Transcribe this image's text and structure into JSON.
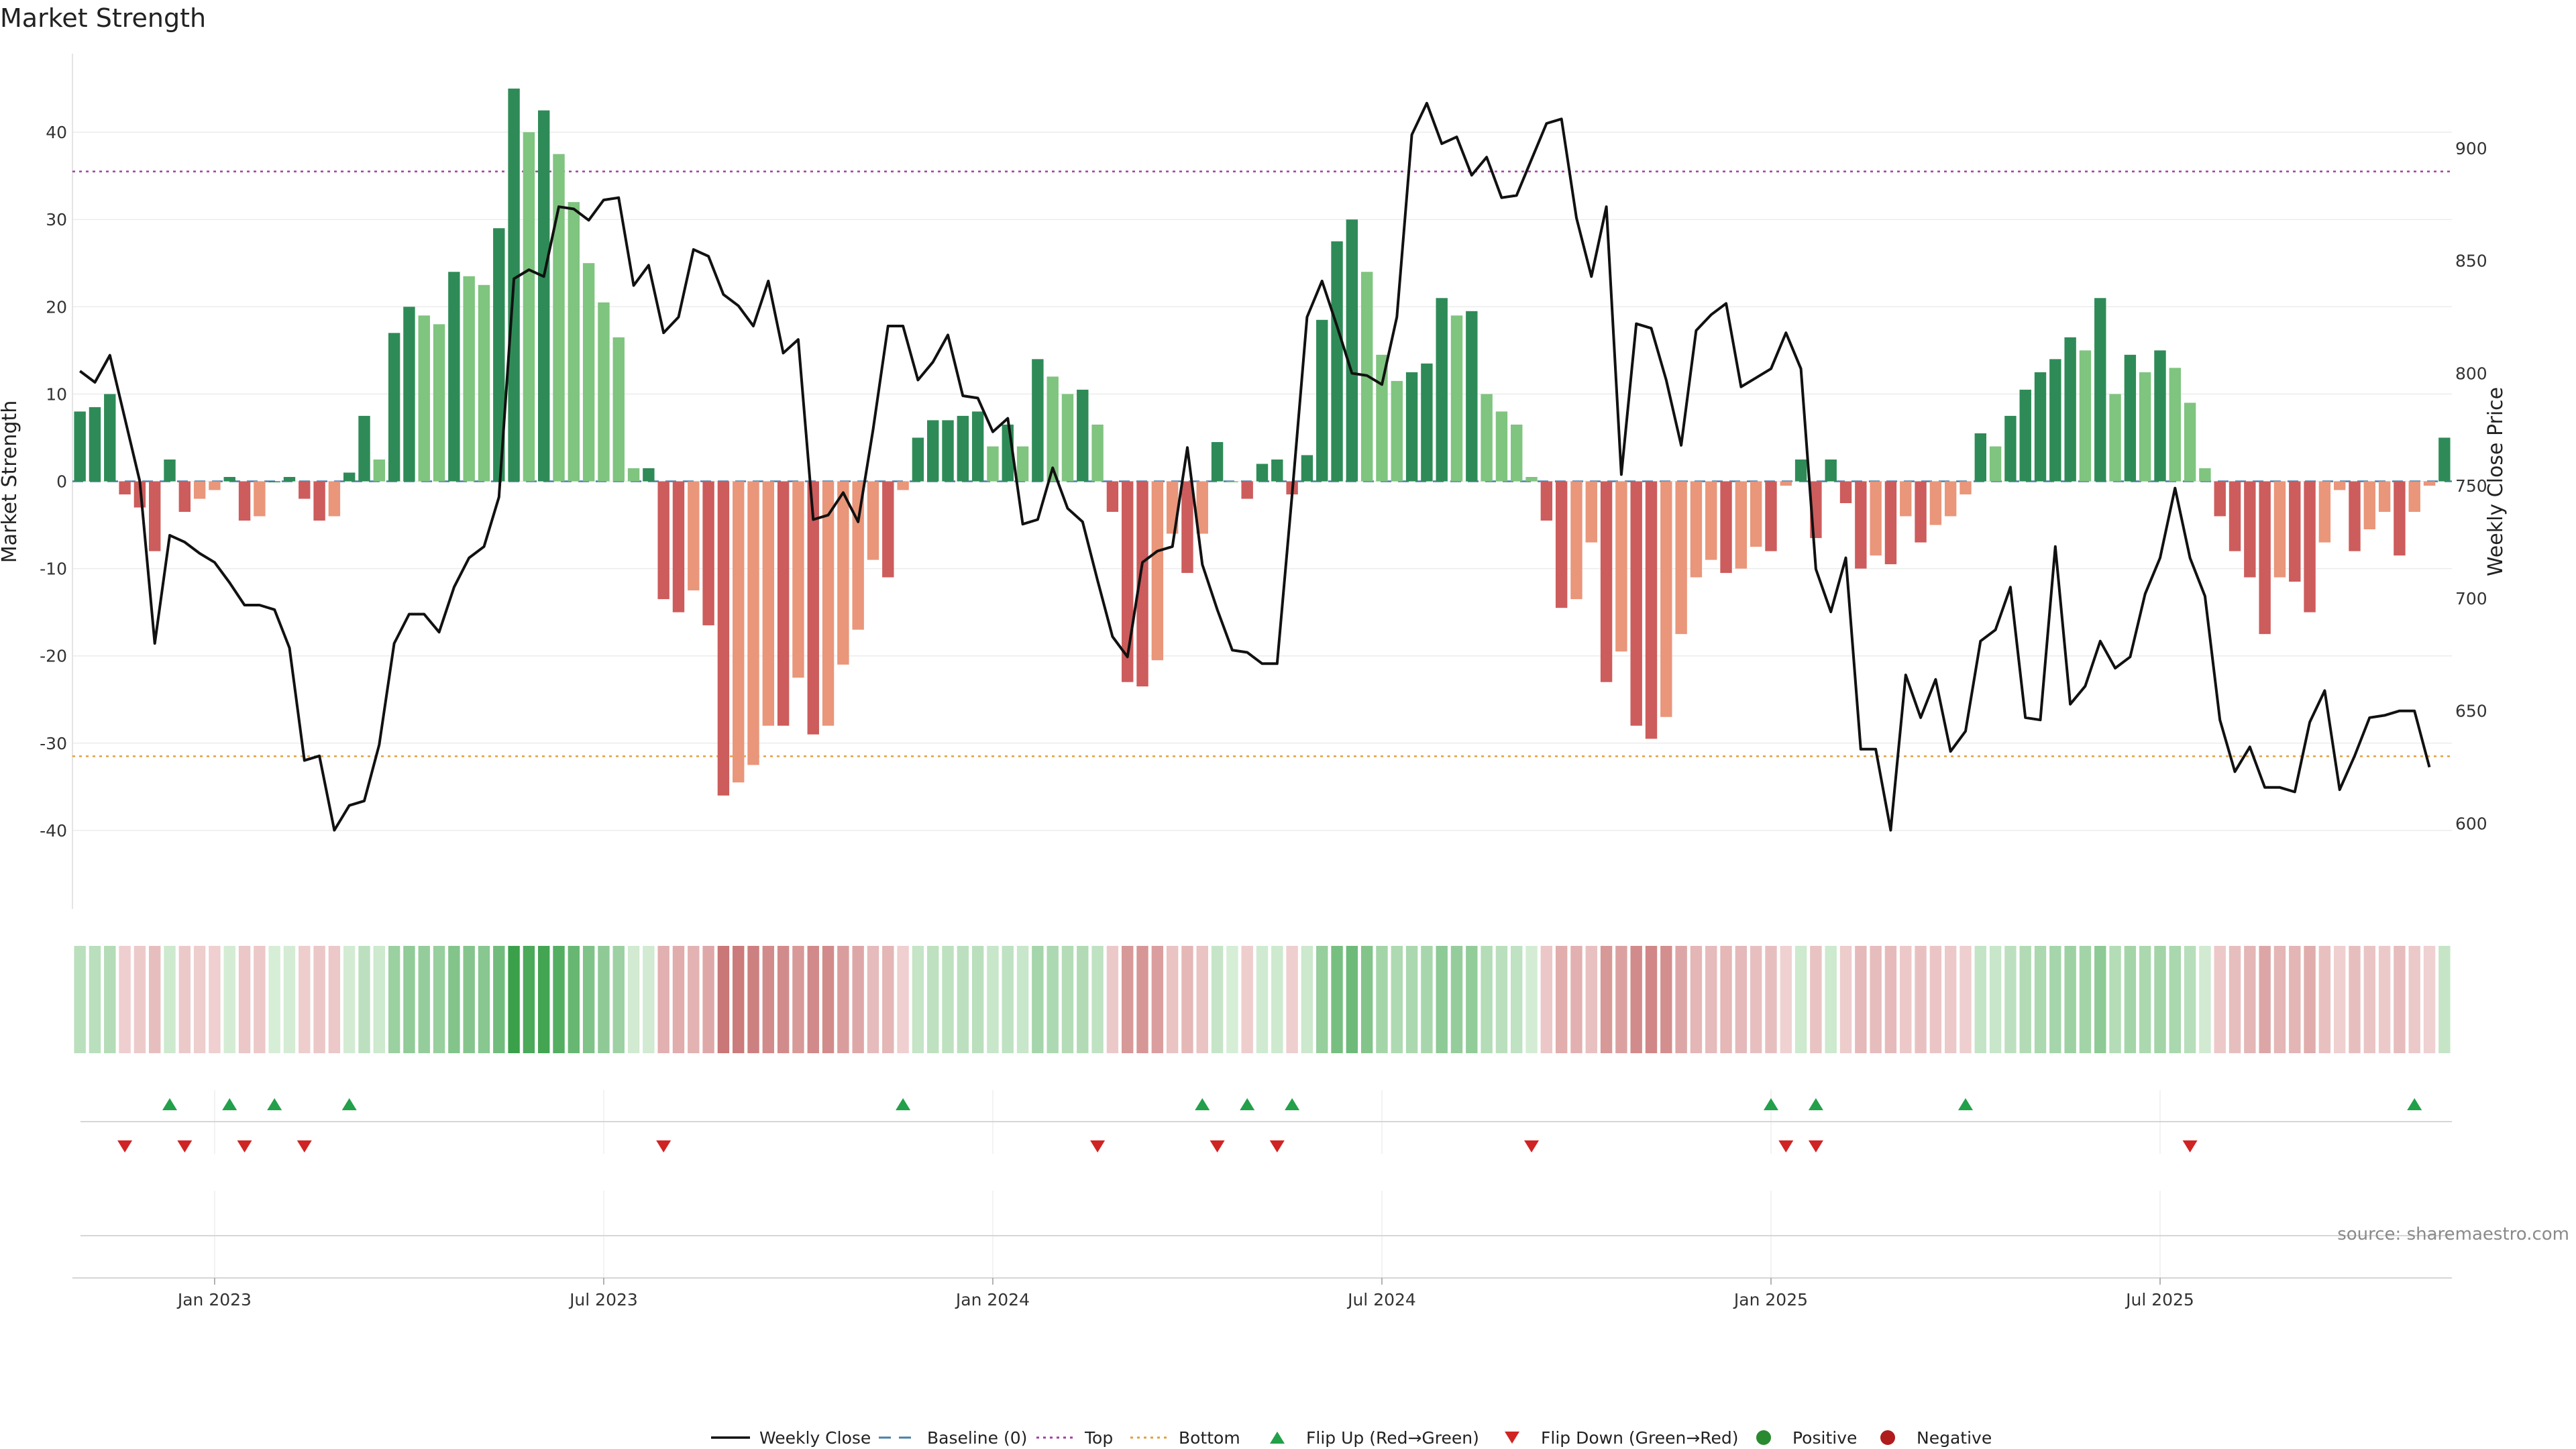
{
  "chart_data": {
    "type": "bar+line",
    "title": "Market Strength",
    "ylabel_left": "Market Strength",
    "ylabel_right": "Weekly Close Price",
    "ylim_left": [
      -49,
      49
    ],
    "yticks_left": [
      40,
      30,
      20,
      10,
      0,
      -10,
      -20,
      -30,
      -40
    ],
    "ylim_right": [
      562,
      942
    ],
    "yticks_right": [
      900,
      850,
      800,
      750,
      700,
      650,
      600
    ],
    "xticks": [
      {
        "label": "Jan 2023",
        "index": 9
      },
      {
        "label": "Jul 2023",
        "index": 35
      },
      {
        "label": "Jan 2024",
        "index": 61
      },
      {
        "label": "Jul 2024",
        "index": 87
      },
      {
        "label": "Jan 2025",
        "index": 113
      },
      {
        "label": "Jul 2025",
        "index": 139
      }
    ],
    "top_level": 35.5,
    "bottom_level": -31.5,
    "baseline": 0,
    "strength": [
      8,
      8.5,
      10,
      -1.5,
      -3,
      -8,
      2.5,
      -3.5,
      -2,
      -1,
      0.5,
      -4.5,
      -4,
      0,
      0.5,
      -2,
      -4.5,
      -4,
      1,
      7.5,
      2.5,
      17,
      20,
      19,
      18,
      24,
      23.5,
      22.5,
      29,
      45,
      40,
      42.5,
      37.5,
      32,
      25,
      20.5,
      16.5,
      1.5,
      1.5,
      -13.5,
      -15,
      -12.5,
      -16.5,
      -36,
      -34.5,
      -32.5,
      -28,
      -28,
      -22.5,
      -29,
      -28,
      -21,
      -17,
      -9,
      -11,
      -1,
      5,
      7,
      7,
      7.5,
      8,
      4,
      6.5,
      4,
      14,
      12,
      10,
      10.5,
      6.5,
      -3.5,
      -23,
      -23.5,
      -20.5,
      -6,
      -10.5,
      -6,
      4.5,
      0,
      -2,
      2,
      2.5,
      -1.5,
      3,
      18.5,
      27.5,
      30,
      24,
      14.5,
      11.5,
      12.5,
      13.5,
      21,
      19,
      19.5,
      10,
      8,
      6.5,
      0.5,
      -4.5,
      -14.5,
      -13.5,
      -7,
      -23,
      -19.5,
      -28,
      -29.5,
      -27,
      -17.5,
      -11,
      -9,
      -10.5,
      -10,
      -7.5,
      -8,
      -0.5,
      2.5,
      -6.5,
      2.5,
      -2.5,
      -10,
      -8.5,
      -9.5,
      -4,
      -7,
      -5,
      -4,
      -1.5,
      5.5,
      4,
      7.5,
      10.5,
      12.5,
      14,
      16.5,
      15,
      21,
      10,
      14.5,
      12.5,
      15,
      13,
      9,
      1.5,
      -4,
      -8,
      -11,
      -17.5,
      -11,
      -11.5,
      -15,
      -7,
      -1,
      -8,
      -5.5,
      -3.5,
      -8.5,
      -3.5,
      -0.5,
      5
    ],
    "weekly_close": [
      801,
      796,
      808,
      780,
      752,
      680,
      728,
      725,
      720,
      716,
      707,
      697,
      697,
      695,
      678,
      628,
      630,
      597,
      608,
      610,
      635,
      680,
      693,
      693,
      685,
      705,
      718,
      723,
      745,
      842,
      846,
      843,
      874,
      873,
      868,
      877,
      878,
      839,
      848,
      818,
      825,
      855,
      852,
      835,
      830,
      821,
      841,
      809,
      815,
      735,
      737,
      747,
      734,
      775,
      821,
      821,
      797,
      805,
      817,
      790,
      789,
      774,
      780,
      733,
      735,
      758,
      740,
      734,
      708,
      683,
      674,
      716,
      721,
      723,
      767,
      715,
      695,
      677,
      676,
      671,
      671,
      746,
      825,
      841,
      821,
      800,
      799,
      795,
      825,
      906,
      920,
      902,
      905,
      888,
      896,
      878,
      879,
      895,
      911,
      913,
      869,
      843,
      874,
      755,
      822,
      820,
      797,
      768,
      819,
      826,
      831,
      794,
      798,
      802,
      818,
      802,
      713,
      694,
      718,
      633,
      633,
      597,
      666,
      647,
      664,
      632,
      641,
      681,
      686,
      705,
      647,
      646,
      723,
      653,
      661,
      681,
      669,
      674,
      702,
      718,
      749,
      718,
      701,
      646,
      623,
      634,
      616,
      616,
      614,
      645,
      659,
      615,
      630,
      647,
      648,
      650,
      650,
      625
    ],
    "flip_up_indices": [
      6,
      10,
      13,
      18,
      55,
      75,
      78,
      81,
      113,
      116,
      126,
      156
    ],
    "flip_down_indices": [
      3,
      7,
      11,
      15,
      39,
      68,
      76,
      80,
      97,
      114,
      116,
      141
    ],
    "legend": [
      {
        "label": "Weekly Close",
        "kind": "line"
      },
      {
        "label": "Baseline (0)",
        "kind": "dash"
      },
      {
        "label": "Top",
        "kind": "dotted-top"
      },
      {
        "label": "Bottom",
        "kind": "dotted-bottom"
      },
      {
        "label": "Flip Up (Red→Green)",
        "kind": "tri-up"
      },
      {
        "label": "Flip Down (Green→Red)",
        "kind": "tri-down"
      },
      {
        "label": "Positive",
        "kind": "dot-pos"
      },
      {
        "label": "Negative",
        "kind": "dot-neg"
      }
    ],
    "source": "source: sharemaestro.com"
  },
  "colors": {
    "strong_pos": "#2e8b57",
    "weak_pos": "#7fc47f",
    "strong_neg": "#cd5c5c",
    "weak_neg": "#e9967a",
    "line": "#111111",
    "baseline": "#4a7fa8",
    "top": "#a040a0",
    "bottom": "#e0a040",
    "flip_up": "#22a04a",
    "flip_down": "#d02424",
    "positive_dot": "#2a8a30",
    "negative_dot": "#b01c1c"
  }
}
